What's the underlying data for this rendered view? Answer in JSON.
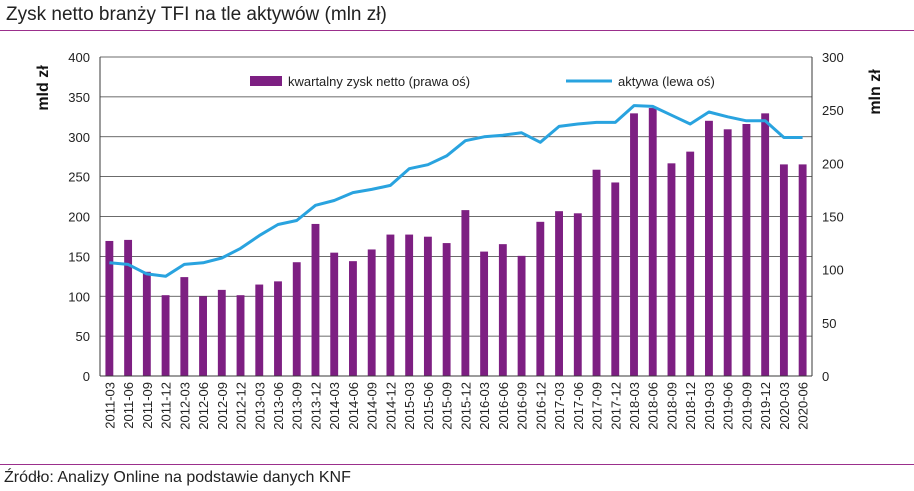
{
  "title": "Zysk netto branży TFI na tle aktywów (mln zł)",
  "source": "Źródło: Analizy Online na podstawie danych KNF",
  "colors": {
    "bars": "#7d1f82",
    "line": "#29a3df",
    "rule": "#9b2f8c"
  },
  "chart_data": {
    "type": "bar+line",
    "categories": [
      "2011-03",
      "2011-06",
      "2011-09",
      "2011-12",
      "2012-03",
      "2012-06",
      "2012-09",
      "2012-12",
      "2013-03",
      "2013-06",
      "2013-09",
      "2013-12",
      "2014-03",
      "2014-06",
      "2014-09",
      "2014-12",
      "2015-03",
      "2015-06",
      "2015-09",
      "2015-12",
      "2016-03",
      "2016-06",
      "2016-09",
      "2016-12",
      "2017-03",
      "2017-06",
      "2017-09",
      "2017-12",
      "2018-03",
      "2018-06",
      "2018-09",
      "2018-12",
      "2019-03",
      "2019-06",
      "2019-09",
      "2019-12",
      "2020-03",
      "2020-06"
    ],
    "series": [
      {
        "name": "kwartalny zysk netto (prawa oś)",
        "type": "bar",
        "axis": "right",
        "values": [
          127,
          128,
          98,
          76,
          93,
          75,
          81,
          76,
          86,
          89,
          107,
          143,
          116,
          108,
          119,
          133,
          133,
          131,
          125,
          156,
          117,
          124,
          113,
          145,
          155,
          153,
          194,
          182,
          247,
          252,
          200,
          211,
          240,
          232,
          237,
          247,
          199,
          199
        ]
      },
      {
        "name": "aktywa (lewa oś)",
        "type": "line",
        "axis": "left",
        "values": [
          142,
          140,
          128,
          125,
          140,
          142,
          148,
          160,
          176,
          190,
          195,
          214,
          220,
          230,
          234,
          239,
          260,
          265,
          276,
          295,
          300,
          302,
          305,
          293,
          313,
          316,
          318,
          318,
          339,
          338,
          327,
          316,
          331,
          325,
          320,
          320,
          299,
          299
        ]
      }
    ],
    "y_left": {
      "label": "mld zł",
      "min": 0,
      "max": 400,
      "step": 50,
      "ticks": [
        "0",
        "50",
        "100",
        "150",
        "200",
        "250",
        "300",
        "350",
        "400"
      ]
    },
    "y_right": {
      "label": "mln zł",
      "min": 0,
      "max": 300,
      "step": 50,
      "ticks": [
        "0",
        "50",
        "100",
        "150",
        "200",
        "250",
        "300"
      ]
    },
    "grid": true,
    "legend_position": "top"
  }
}
